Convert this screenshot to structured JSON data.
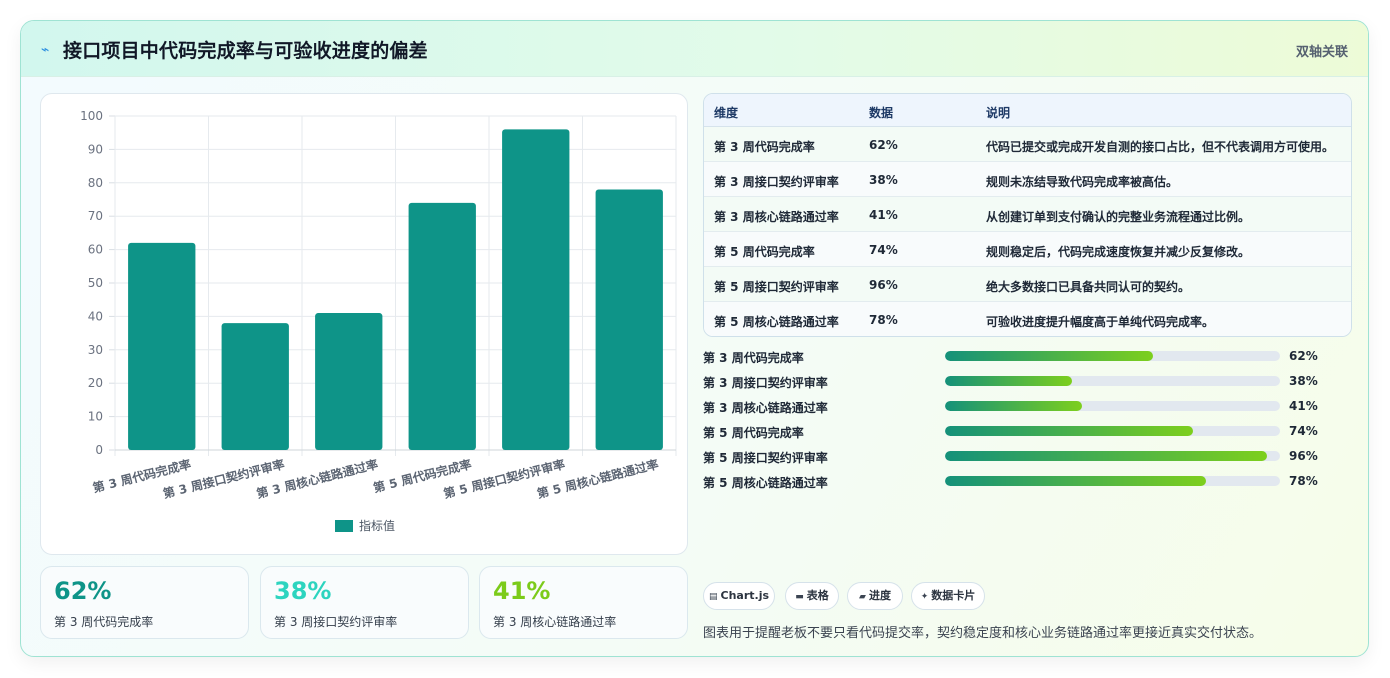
{
  "header": {
    "icon": "trend-line-icon",
    "title": "接口项目中代码完成率与可验收进度的偏差",
    "tag": "双轴关联"
  },
  "chart_data": {
    "type": "bar",
    "categories": [
      "第 3 周代码完成率",
      "第 3 周接口契约评审率",
      "第 3 周核心链路通过率",
      "第 5 周代码完成率",
      "第 5 周接口契约评审率",
      "第 5 周核心链路通过率"
    ],
    "series": [
      {
        "name": "指标值",
        "values": [
          62,
          38,
          41,
          74,
          96,
          78
        ]
      }
    ],
    "ylim": [
      0,
      100
    ],
    "yticks": [
      0,
      10,
      20,
      30,
      40,
      50,
      60,
      70,
      80,
      90,
      100
    ],
    "grid": true,
    "legend": "bottom",
    "bar_color": "#0e9488"
  },
  "kpis": [
    {
      "value": "62%",
      "label": "第 3 周代码完成率",
      "color": "#0e9488"
    },
    {
      "value": "38%",
      "label": "第 3 周接口契约评审率",
      "color": "#2dd4bf"
    },
    {
      "value": "41%",
      "label": "第 3 周核心链路通过率",
      "color": "#7ccb1a"
    }
  ],
  "table": {
    "headers": [
      "维度",
      "数据",
      "说明"
    ],
    "rows": [
      {
        "dim": "第 3 周代码完成率",
        "data": "62%",
        "desc": "代码已提交或完成开发自测的接口占比，但不代表调用方可使用。"
      },
      {
        "dim": "第 3 周接口契约评审率",
        "data": "38%",
        "desc": "规则未冻结导致代码完成率被高估。"
      },
      {
        "dim": "第 3 周核心链路通过率",
        "data": "41%",
        "desc": "从创建订单到支付确认的完整业务流程通过比例。"
      },
      {
        "dim": "第 5 周代码完成率",
        "data": "74%",
        "desc": "规则稳定后，代码完成速度恢复并减少反复修改。"
      },
      {
        "dim": "第 5 周接口契约评审率",
        "data": "96%",
        "desc": "绝大多数接口已具备共同认可的契约。"
      },
      {
        "dim": "第 5 周核心链路通过率",
        "data": "78%",
        "desc": "可验收进度提升幅度高于单纯代码完成率。"
      }
    ]
  },
  "progress": [
    {
      "label": "第 3 周代码完成率",
      "value": 62,
      "text": "62%"
    },
    {
      "label": "第 3 周接口契约评审率",
      "value": 38,
      "text": "38%"
    },
    {
      "label": "第 3 周核心链路通过率",
      "value": 41,
      "text": "41%"
    },
    {
      "label": "第 5 周代码完成率",
      "value": 74,
      "text": "74%"
    },
    {
      "label": "第 5 周接口契约评审率",
      "value": 96,
      "text": "96%"
    },
    {
      "label": "第 5 周核心链路通过率",
      "value": 78,
      "text": "78%"
    }
  ],
  "chips": [
    {
      "icon": "chart-icon",
      "glyph": "▤",
      "label": "Chart.js"
    },
    {
      "icon": "table-icon",
      "glyph": "▬",
      "label": "表格"
    },
    {
      "icon": "progress-icon",
      "glyph": "▰",
      "label": "进度"
    },
    {
      "icon": "sparkle-icon",
      "glyph": "✦",
      "label": "数据卡片"
    }
  ],
  "note": "图表用于提醒老板不要只看代码提交率，契约稳定度和核心业务链路通过率更接近真实交付状态。"
}
